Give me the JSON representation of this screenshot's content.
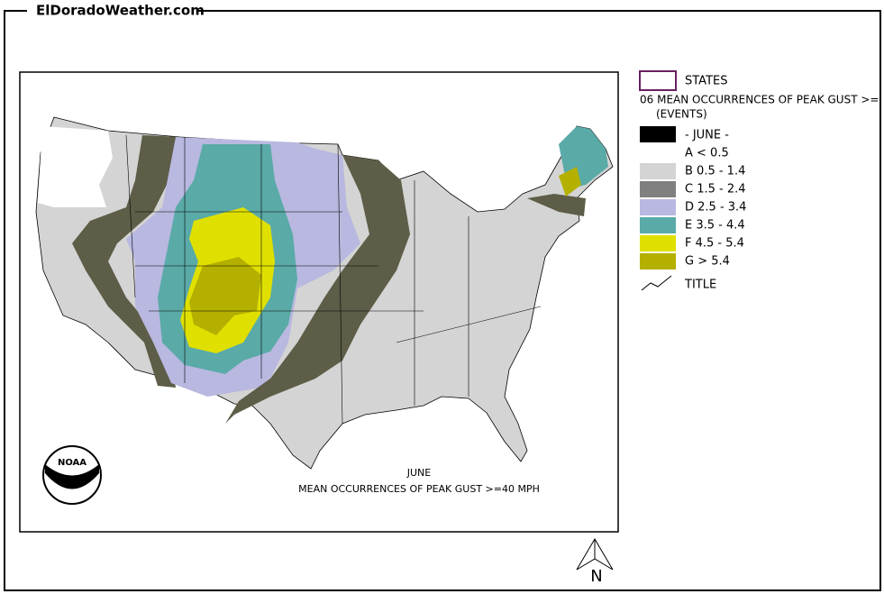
{
  "header": {
    "site": "ElDoradoWeather.com"
  },
  "map": {
    "month": "JUNE",
    "caption": "MEAN OCCURRENCES OF PEAK GUST >=40 MPH",
    "logo": "NOAA",
    "north": "N"
  },
  "legend": {
    "states": "STATES",
    "title": "06 MEAN OCCURRENCES OF PEAK GUST >=",
    "units": "(EVENTS)",
    "period": "- JUNE -",
    "classes": [
      {
        "label": "A < 0.5",
        "color": "#ffffff"
      },
      {
        "label": "B 0.5 - 1.4",
        "color": "#d4d4d4"
      },
      {
        "label": "C 1.5 - 2.4",
        "color": "#808080"
      },
      {
        "label": "D 2.5 - 3.4",
        "color": "#b8b8e0"
      },
      {
        "label": "E 3.5 - 4.4",
        "color": "#5aaaa8"
      },
      {
        "label": "F 4.5 - 5.4",
        "color": "#e0e000"
      },
      {
        "label": "G > 5.4",
        "color": "#b4b000"
      }
    ],
    "line": "TITLE"
  }
}
